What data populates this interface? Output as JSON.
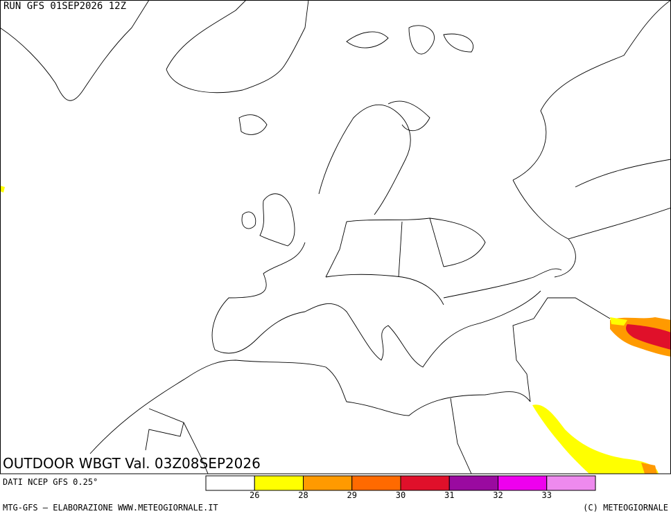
{
  "header": {
    "run": "RUN GFS 01SEP2026 12Z"
  },
  "map": {
    "title": "OUTDOOR WBGT Val. 03Z08SEP2026"
  },
  "legend": {
    "colors": [
      "#ffffff",
      "#ffff00",
      "#ff9a00",
      "#ff6a00",
      "#e0102a",
      "#9a0aa0",
      "#ee00ee",
      "#ee8aee"
    ],
    "ticks": [
      26,
      28,
      29,
      30,
      31,
      32,
      33
    ]
  },
  "footer": {
    "source": "DATI NCEP GFS 0.25°",
    "credit": "MTG-GFS — ELABORAZIONE WWW.METEOGIORNALE.IT",
    "copyright": "(C) METEOGIORNALE"
  }
}
